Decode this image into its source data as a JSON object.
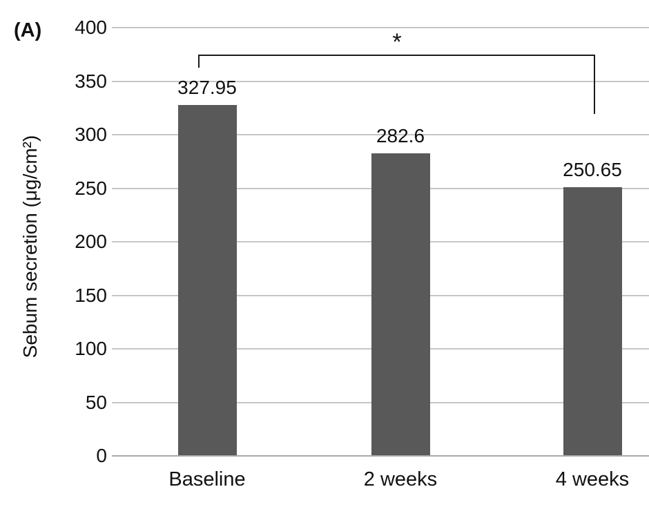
{
  "panel_label": "(A)",
  "chart_data": {
    "type": "bar",
    "title": "",
    "xlabel": "",
    "ylabel": "Sebum secretion (μg/cm²)",
    "categories": [
      "Baseline",
      "2 weeks",
      "4 weeks"
    ],
    "values": [
      327.95,
      282.6,
      250.65
    ],
    "value_labels": [
      "327.95",
      "282.6",
      "250.65"
    ],
    "ylim": [
      0,
      400
    ],
    "ytick_step": 50,
    "ytick_labels": [
      "0",
      "50",
      "100",
      "150",
      "200",
      "250",
      "300",
      "350",
      "400"
    ],
    "grid": "horizontal",
    "legend": "none",
    "colors": {
      "bar_fill": "#595959",
      "gridline": "#c6c6c6",
      "baseline_gridline": "#a8a8a8",
      "text": "#111111",
      "annotation_line": "#1a1a1a"
    },
    "significance": {
      "label": "*",
      "from": "Baseline",
      "to": "4 weeks"
    }
  }
}
